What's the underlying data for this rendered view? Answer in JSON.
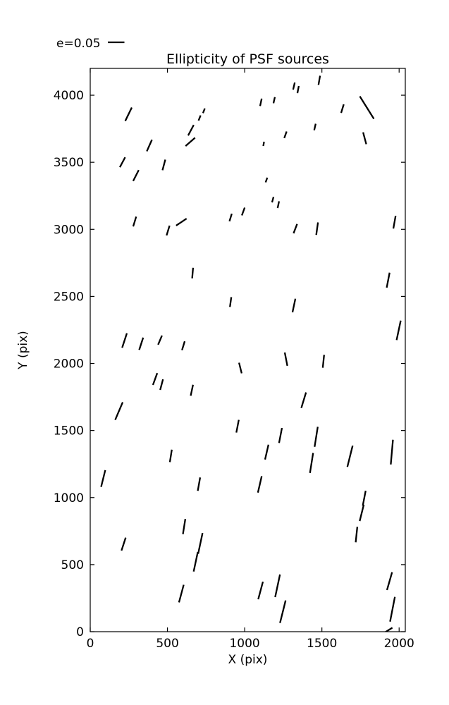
{
  "figure": {
    "title": "Ellipticity of PSF sources",
    "xlabel": "X (pix)",
    "ylabel": "Y (pix)",
    "legend_label": "e=0.05"
  },
  "chart_data": {
    "type": "scatter",
    "variant": "ellipticity-stick-quiver",
    "title": "Ellipticity of PSF sources",
    "xlabel": "X (pix)",
    "ylabel": "Y (pix)",
    "xlim": [
      0,
      2040
    ],
    "ylim": [
      0,
      4200
    ],
    "x_ticks": [
      0,
      500,
      1000,
      1500,
      2000
    ],
    "y_ticks": [
      0,
      500,
      1000,
      1500,
      2000,
      2500,
      3000,
      3500,
      4000
    ],
    "grid": false,
    "legend": {
      "label": "e=0.05",
      "e": 0.05,
      "position": "top-left-above-axes"
    },
    "stick_color": "#000000",
    "point_format": [
      "x_pix",
      "y_pix",
      "angle_deg_ccw_from_horizontal",
      "ellipticity"
    ],
    "points": [
      [
        248,
        3858,
        64,
        0.045
      ],
      [
        708,
        3830,
        68,
        0.017
      ],
      [
        736,
        3884,
        68,
        0.015
      ],
      [
        652,
        3739,
        62,
        0.036
      ],
      [
        648,
        3652,
        41,
        0.038
      ],
      [
        383,
        3625,
        66,
        0.038
      ],
      [
        209,
        3500,
        62,
        0.034
      ],
      [
        296,
        3401,
        63,
        0.037
      ],
      [
        477,
        3480,
        75,
        0.033
      ],
      [
        288,
        3058,
        73,
        0.031
      ],
      [
        504,
        2991,
        73,
        0.031
      ],
      [
        590,
        3054,
        34,
        0.038
      ],
      [
        909,
        3088,
        73,
        0.024
      ],
      [
        991,
        3133,
        70,
        0.025
      ],
      [
        1483,
        4111,
        80,
        0.028
      ],
      [
        1319,
        4068,
        77,
        0.022
      ],
      [
        1346,
        4042,
        79,
        0.022
      ],
      [
        1105,
        3947,
        78,
        0.023
      ],
      [
        1191,
        3963,
        77,
        0.019
      ],
      [
        1633,
        3900,
        73,
        0.027
      ],
      [
        1791,
        3908,
        122,
        0.08
      ],
      [
        1455,
        3763,
        77,
        0.02
      ],
      [
        1264,
        3705,
        70,
        0.021
      ],
      [
        1777,
        3679,
        105,
        0.037
      ],
      [
        1123,
        3637,
        80,
        0.013
      ],
      [
        1141,
        3368,
        70,
        0.015
      ],
      [
        1182,
        3221,
        75,
        0.017
      ],
      [
        1218,
        3184,
        78,
        0.021
      ],
      [
        1328,
        3005,
        69,
        0.03
      ],
      [
        1469,
        3005,
        82,
        0.038
      ],
      [
        1970,
        3053,
        80,
        0.039
      ],
      [
        663,
        2674,
        85,
        0.032
      ],
      [
        909,
        2458,
        82,
        0.03
      ],
      [
        222,
        2171,
        72,
        0.046
      ],
      [
        330,
        2147,
        72,
        0.039
      ],
      [
        452,
        2174,
        67,
        0.03
      ],
      [
        603,
        2132,
        73,
        0.028
      ],
      [
        972,
        1966,
        104,
        0.033
      ],
      [
        420,
        1884,
        70,
        0.038
      ],
      [
        462,
        1842,
        75,
        0.033
      ],
      [
        658,
        1800,
        78,
        0.034
      ],
      [
        186,
        1645,
        67,
        0.058
      ],
      [
        954,
        1532,
        79,
        0.039
      ],
      [
        1929,
        2621,
        79,
        0.046
      ],
      [
        1319,
        2432,
        78,
        0.042
      ],
      [
        1997,
        2247,
        78,
        0.06
      ],
      [
        1268,
        2032,
        101,
        0.041
      ],
      [
        1510,
        2016,
        84,
        0.039
      ],
      [
        1382,
        1726,
        73,
        0.049
      ],
      [
        1232,
        1463,
        79,
        0.046
      ],
      [
        1463,
        1453,
        81,
        0.061
      ],
      [
        1433,
        1258,
        81,
        0.061
      ],
      [
        1953,
        1339,
        85,
        0.075
      ],
      [
        522,
        1311,
        81,
        0.038
      ],
      [
        84,
        1142,
        76,
        0.052
      ],
      [
        704,
        1100,
        80,
        0.041
      ],
      [
        608,
        784,
        81,
        0.046
      ],
      [
        216,
        653,
        72,
        0.041
      ],
      [
        713,
        658,
        78,
        0.064
      ],
      [
        683,
        521,
        78,
        0.06
      ],
      [
        590,
        284,
        75,
        0.055
      ],
      [
        1143,
        1339,
        77,
        0.046
      ],
      [
        1682,
        1308,
        76,
        0.066
      ],
      [
        1098,
        1098,
        77,
        0.051
      ],
      [
        1774,
        995,
        79,
        0.046
      ],
      [
        1758,
        886,
        76,
        0.051
      ],
      [
        1724,
        724,
        84,
        0.047
      ],
      [
        1103,
        307,
        75,
        0.055
      ],
      [
        1213,
        342,
        78,
        0.07
      ],
      [
        1247,
        149,
        76,
        0.07
      ],
      [
        1938,
        377,
        74,
        0.056
      ],
      [
        1957,
        167,
        79,
        0.076
      ],
      [
        1929,
        10,
        32,
        0.03
      ]
    ]
  },
  "colors": {
    "background": "#ffffff",
    "axes": "#000000",
    "text": "#000000",
    "stick": "#000000"
  }
}
